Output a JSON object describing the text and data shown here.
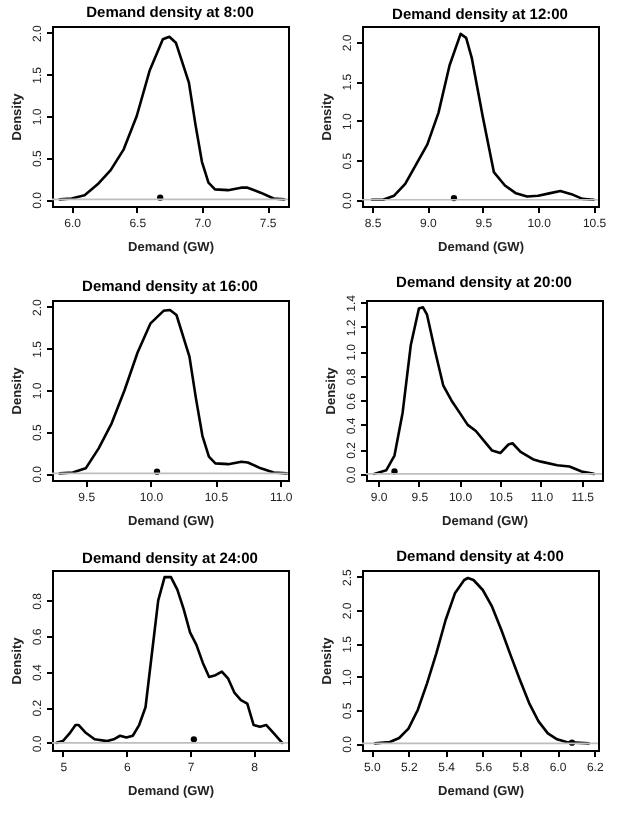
{
  "chart_data": [
    {
      "type": "line",
      "title": "Demand density at 8:00",
      "xlabel": "Demand (GW)",
      "ylabel": "Density",
      "xlim": [
        5.85,
        7.66
      ],
      "ylim": [
        -0.08,
        2.08
      ],
      "xticks": [
        {
          "value": 6,
          "label": "6.0"
        },
        {
          "value": 6.5,
          "label": "6.5"
        },
        {
          "value": 7,
          "label": "7.0"
        },
        {
          "value": 7.5,
          "label": "7.5"
        }
      ],
      "yticks": [
        {
          "value": 0,
          "label": "0.0"
        },
        {
          "value": 0.5,
          "label": "0.5"
        },
        {
          "value": 1,
          "label": "1.0"
        },
        {
          "value": 1.5,
          "label": "1.5"
        },
        {
          "value": 2,
          "label": "2.0"
        }
      ],
      "ref_lines": [
        {
          "axis": "y",
          "value": 0,
          "color": "#bebebe"
        }
      ],
      "series": [
        {
          "color": "#000000",
          "x": [
            5.91,
            6.0,
            6.1,
            6.2,
            6.3,
            6.4,
            6.5,
            6.6,
            6.7,
            6.75,
            6.8,
            6.9,
            6.95,
            7.0,
            7.05,
            7.1,
            7.2,
            7.3,
            7.35,
            7.45,
            7.55,
            7.63
          ],
          "values": [
            0,
            0.01,
            0.05,
            0.18,
            0.35,
            0.6,
            1.0,
            1.55,
            1.92,
            1.95,
            1.88,
            1.4,
            0.9,
            0.45,
            0.2,
            0.12,
            0.11,
            0.14,
            0.14,
            0.08,
            0.01,
            0
          ]
        },
        {
          "type": "scatter",
          "marker": "circle",
          "color": "#000000",
          "x": [
            6.68
          ],
          "values": [
            0.02
          ]
        }
      ]
    },
    {
      "type": "line",
      "title": "Demand density at 12:00",
      "xlabel": "Demand (GW)",
      "ylabel": "Density",
      "xlim": [
        8.41,
        10.54
      ],
      "ylim": [
        -0.08,
        2.2
      ],
      "xticks": [
        8.5,
        {
          "value": 9,
          "label": "9.0"
        },
        9.5,
        {
          "value": 10,
          "label": "10.0"
        },
        10.5
      ],
      "yticks": [
        {
          "value": 0,
          "label": "0.0"
        },
        {
          "value": 0.5,
          "label": "0.5"
        },
        {
          "value": 1,
          "label": "1.0"
        },
        {
          "value": 1.5,
          "label": "1.5"
        },
        {
          "value": 2,
          "label": "2.0"
        }
      ],
      "ref_lines": [
        {
          "axis": "y",
          "value": 0,
          "color": "#bebebe"
        }
      ],
      "series": [
        {
          "color": "#000000",
          "x": [
            8.5,
            8.6,
            8.7,
            8.8,
            8.9,
            9.0,
            9.1,
            9.2,
            9.3,
            9.35,
            9.4,
            9.5,
            9.6,
            9.7,
            9.8,
            9.9,
            10.0,
            10.1,
            10.2,
            10.3,
            10.4,
            10.5
          ],
          "values": [
            0,
            0,
            0.05,
            0.2,
            0.45,
            0.7,
            1.1,
            1.7,
            2.1,
            2.05,
            1.8,
            1.05,
            0.35,
            0.18,
            0.08,
            0.04,
            0.05,
            0.08,
            0.11,
            0.07,
            0.01,
            0
          ]
        },
        {
          "type": "scatter",
          "marker": "circle",
          "color": "#000000",
          "x": [
            9.24
          ],
          "values": [
            0.02
          ]
        }
      ]
    },
    {
      "type": "line",
      "title": "Demand density at 16:00",
      "xlabel": "Demand (GW)",
      "ylabel": "Density",
      "xlim": [
        9.24,
        11.06
      ],
      "ylim": [
        -0.08,
        2.08
      ],
      "xticks": [
        9.5,
        {
          "value": 10,
          "label": "10.0"
        },
        10.5,
        {
          "value": 11,
          "label": "11.0"
        }
      ],
      "yticks": [
        {
          "value": 0,
          "label": "0.0"
        },
        {
          "value": 0.5,
          "label": "0.5"
        },
        {
          "value": 1,
          "label": "1.0"
        },
        {
          "value": 1.5,
          "label": "1.5"
        },
        {
          "value": 2,
          "label": "2.0"
        }
      ],
      "ref_lines": [
        {
          "axis": "y",
          "value": 0,
          "color": "#bebebe"
        }
      ],
      "series": [
        {
          "color": "#000000",
          "x": [
            9.3,
            9.4,
            9.5,
            9.6,
            9.7,
            9.8,
            9.9,
            10.0,
            10.1,
            10.15,
            10.2,
            10.3,
            10.35,
            10.4,
            10.45,
            10.5,
            10.6,
            10.7,
            10.75,
            10.85,
            10.95,
            11.05
          ],
          "values": [
            0,
            0.01,
            0.06,
            0.3,
            0.6,
            1.0,
            1.45,
            1.8,
            1.95,
            1.96,
            1.9,
            1.4,
            0.9,
            0.45,
            0.2,
            0.12,
            0.11,
            0.14,
            0.13,
            0.06,
            0.01,
            0
          ]
        },
        {
          "type": "scatter",
          "marker": "circle",
          "color": "#000000",
          "x": [
            10.05
          ],
          "values": [
            0.02
          ]
        }
      ]
    },
    {
      "type": "line",
      "title": "Demand density at 20:00",
      "xlabel": "Demand (GW)",
      "ylabel": "Density",
      "xlim": [
        8.85,
        11.75
      ],
      "ylim": [
        -0.05,
        1.42
      ],
      "xticks": [
        {
          "value": 9,
          "label": "9.0"
        },
        9.5,
        {
          "value": 10,
          "label": "10.0"
        },
        10.5,
        {
          "value": 11,
          "label": "11.0"
        },
        11.5
      ],
      "yticks": [
        {
          "value": 0,
          "label": "0.0"
        },
        0.2,
        0.4,
        0.6,
        0.8,
        {
          "value": 1,
          "label": "1.0"
        },
        1.2,
        1.4
      ],
      "ref_lines": [
        {
          "axis": "y",
          "value": 0,
          "color": "#bebebe"
        }
      ],
      "series": [
        {
          "color": "#000000",
          "x": [
            8.95,
            9.1,
            9.2,
            9.3,
            9.4,
            9.5,
            9.55,
            9.6,
            9.7,
            9.8,
            9.9,
            10.0,
            10.1,
            10.2,
            10.3,
            10.4,
            10.5,
            10.6,
            10.65,
            10.75,
            10.9,
            11.0,
            11.2,
            11.35,
            11.5,
            11.65
          ],
          "values": [
            0,
            0.03,
            0.15,
            0.5,
            1.05,
            1.35,
            1.36,
            1.3,
            1.0,
            0.72,
            0.6,
            0.5,
            0.4,
            0.35,
            0.27,
            0.19,
            0.17,
            0.24,
            0.25,
            0.18,
            0.12,
            0.1,
            0.07,
            0.06,
            0.02,
            0
          ]
        },
        {
          "type": "scatter",
          "marker": "circle",
          "color": "#000000",
          "x": [
            9.2
          ],
          "values": [
            0.02
          ]
        }
      ]
    },
    {
      "type": "line",
      "title": "Demand density at 24:00",
      "xlabel": "Demand (GW)",
      "ylabel": "Density",
      "xlim": [
        4.83,
        8.54
      ],
      "ylim": [
        -0.04,
        0.97
      ],
      "xticks": [
        5,
        6,
        7,
        8
      ],
      "yticks": [
        {
          "value": 0,
          "label": "0.0"
        },
        0.2,
        0.4,
        0.6,
        0.8
      ],
      "ref_lines": [
        {
          "axis": "y",
          "value": 0,
          "color": "#bebebe"
        }
      ],
      "series": [
        {
          "color": "#000000",
          "x": [
            4.9,
            5.0,
            5.1,
            5.2,
            5.25,
            5.35,
            5.5,
            5.7,
            5.8,
            5.9,
            6.0,
            6.1,
            6.2,
            6.3,
            6.4,
            6.5,
            6.6,
            6.7,
            6.8,
            6.9,
            7.0,
            7.1,
            7.2,
            7.3,
            7.4,
            7.5,
            7.6,
            7.7,
            7.8,
            7.9,
            8.0,
            8.1,
            8.2,
            8.3,
            8.45
          ],
          "values": [
            0,
            0.01,
            0.05,
            0.1,
            0.1,
            0.06,
            0.02,
            0.01,
            0.02,
            0.04,
            0.03,
            0.04,
            0.1,
            0.2,
            0.5,
            0.8,
            0.93,
            0.93,
            0.86,
            0.75,
            0.62,
            0.55,
            0.45,
            0.37,
            0.38,
            0.4,
            0.36,
            0.28,
            0.24,
            0.22,
            0.1,
            0.09,
            0.1,
            0.06,
            0
          ]
        },
        {
          "type": "scatter",
          "marker": "circle",
          "color": "#000000",
          "x": [
            7.06
          ],
          "values": [
            0.02
          ]
        }
      ]
    },
    {
      "type": "line",
      "title": "Demand density at 4:00",
      "xlabel": "Demand (GW)",
      "ylabel": "Density",
      "xlim": [
        4.95,
        6.22
      ],
      "ylim": [
        -0.1,
        2.6
      ],
      "xticks": [
        {
          "value": 5,
          "label": "5.0"
        },
        5.2,
        5.4,
        5.6,
        5.8,
        {
          "value": 6,
          "label": "6.0"
        },
        6.2
      ],
      "yticks": [
        {
          "value": 0,
          "label": "0.0"
        },
        0.5,
        {
          "value": 1,
          "label": "1.0"
        },
        1.5,
        {
          "value": 2,
          "label": "2.0"
        },
        2.5
      ],
      "ref_lines": [
        {
          "axis": "y",
          "value": 0,
          "color": "#bebebe"
        }
      ],
      "series": [
        {
          "color": "#000000",
          "x": [
            5.02,
            5.1,
            5.15,
            5.2,
            5.25,
            5.3,
            5.35,
            5.4,
            5.45,
            5.5,
            5.52,
            5.55,
            5.6,
            5.65,
            5.7,
            5.75,
            5.8,
            5.85,
            5.9,
            5.95,
            6.0,
            6.05,
            6.1,
            6.17
          ],
          "values": [
            0,
            0.02,
            0.08,
            0.22,
            0.5,
            0.9,
            1.35,
            1.85,
            2.25,
            2.45,
            2.48,
            2.45,
            2.3,
            2.05,
            1.7,
            1.32,
            0.95,
            0.6,
            0.33,
            0.15,
            0.06,
            0.02,
            0.01,
            0
          ]
        },
        {
          "type": "scatter",
          "marker": "circle",
          "color": "#000000",
          "x": [
            6.08
          ],
          "values": [
            0.01
          ]
        }
      ]
    }
  ]
}
